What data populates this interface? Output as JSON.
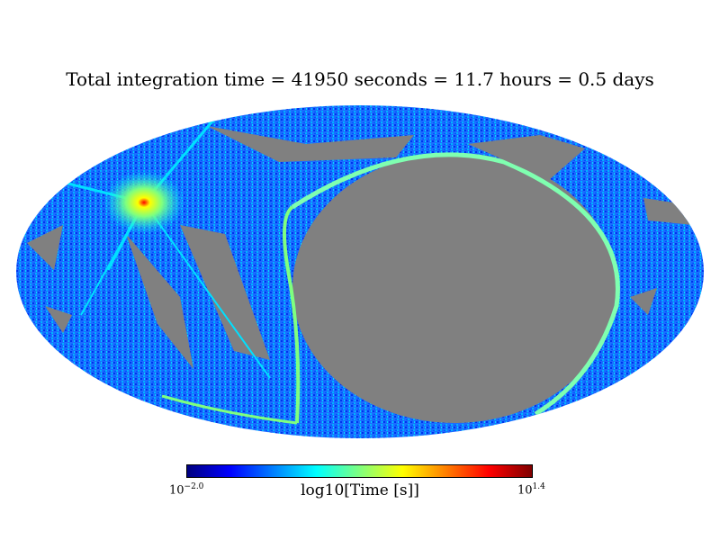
{
  "chart_data": {
    "type": "heatmap",
    "projection": "mollweide",
    "title": "Total integration time = 41950 seconds = 11.7 hours = 0.5 days",
    "colorbar": {
      "label": "log10[Time [s]]",
      "min_base": "10",
      "min_exp": "−2.0",
      "max_base": "10",
      "max_exp": "1.4",
      "range": [
        -2.0,
        1.4
      ],
      "colormap": "jet"
    },
    "unobserved_color": "#808080",
    "values": {
      "bright_hotspot_log10": 1.2,
      "typical_log10": -1.0
    }
  }
}
